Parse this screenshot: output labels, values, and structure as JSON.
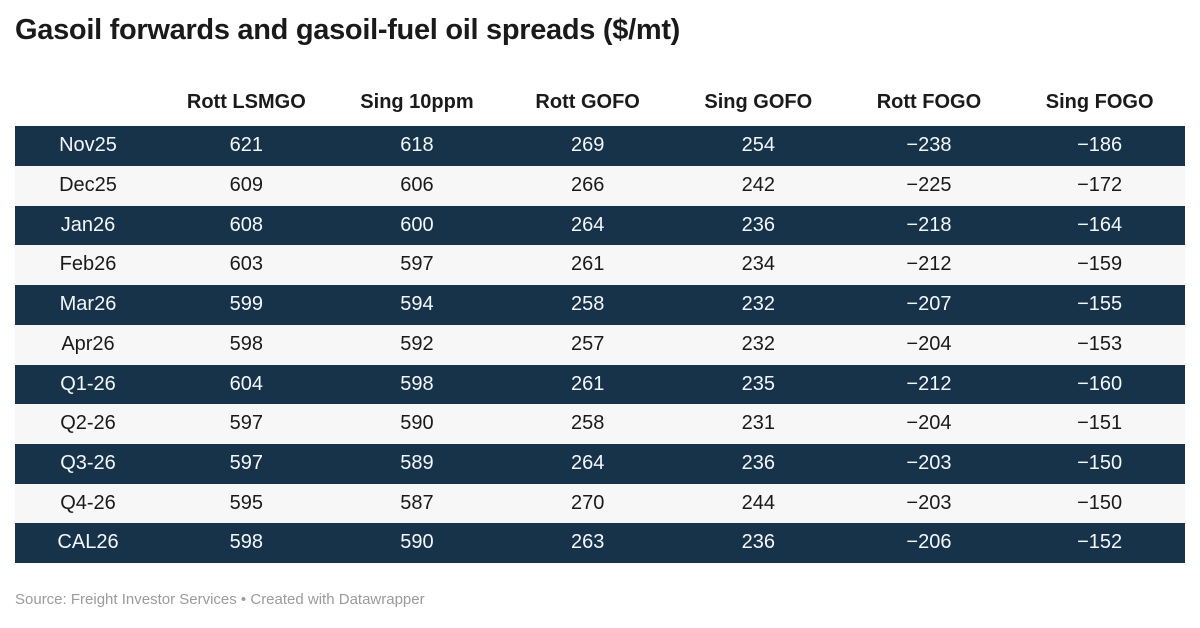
{
  "title": "Gasoil forwards and gasoil-fuel oil spreads ($/mt)",
  "chart_data": {
    "type": "table",
    "title": "Gasoil forwards and gasoil-fuel oil spreads ($/mt)",
    "unit": "$/mt",
    "row_label_header": "",
    "columns": [
      "Rott LSMGO",
      "Sing 10ppm",
      "Rott GOFO",
      "Sing GOFO",
      "Rott FOGO",
      "Sing FOGO"
    ],
    "rows": [
      {
        "label": "Nov25",
        "values": [
          "621",
          "618",
          "269",
          "254",
          "−238",
          "−186"
        ]
      },
      {
        "label": "Dec25",
        "values": [
          "609",
          "606",
          "266",
          "242",
          "−225",
          "−172"
        ]
      },
      {
        "label": "Jan26",
        "values": [
          "608",
          "600",
          "264",
          "236",
          "−218",
          "−164"
        ]
      },
      {
        "label": "Feb26",
        "values": [
          "603",
          "597",
          "261",
          "234",
          "−212",
          "−159"
        ]
      },
      {
        "label": "Mar26",
        "values": [
          "599",
          "594",
          "258",
          "232",
          "−207",
          "−155"
        ]
      },
      {
        "label": "Apr26",
        "values": [
          "598",
          "592",
          "257",
          "232",
          "−204",
          "−153"
        ]
      },
      {
        "label": "Q1-26",
        "values": [
          "604",
          "598",
          "261",
          "235",
          "−212",
          "−160"
        ]
      },
      {
        "label": "Q2-26",
        "values": [
          "597",
          "590",
          "258",
          "231",
          "−204",
          "−151"
        ]
      },
      {
        "label": "Q3-26",
        "values": [
          "597",
          "589",
          "264",
          "236",
          "−203",
          "−150"
        ]
      },
      {
        "label": "Q4-26",
        "values": [
          "595",
          "587",
          "270",
          "244",
          "−203",
          "−150"
        ]
      },
      {
        "label": "CAL26",
        "values": [
          "598",
          "590",
          "263",
          "236",
          "−206",
          "−152"
        ]
      }
    ],
    "layout_hints": {
      "striped_rows": true,
      "stripe_pattern": "odd rows dark navy, even rows light gray",
      "alignment": "center"
    }
  },
  "footer": {
    "source": "Source: Freight Investor Services",
    "separator": " • ",
    "credit": "Created with Datawrapper"
  },
  "colors": {
    "dark_row_bg": "#16334a",
    "light_row_bg": "#f7f7f7",
    "dark_row_text": "#f3f7fa",
    "body_text": "#1a1a1a",
    "footer_text": "#9b9b9b",
    "page_bg": "#ffffff"
  }
}
